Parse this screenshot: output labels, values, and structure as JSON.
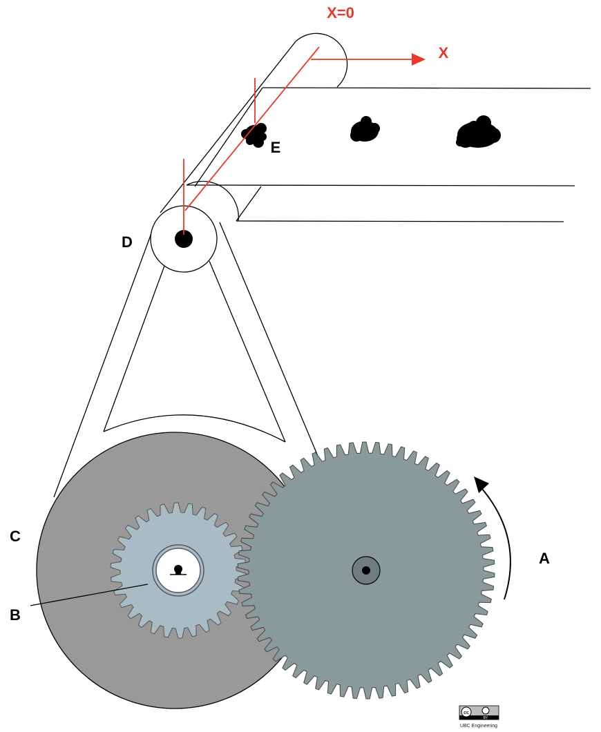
{
  "labels": {
    "x0": "X=0",
    "x": "X",
    "a": "A",
    "b": "B",
    "c": "C",
    "d": "D",
    "e": "E"
  },
  "license": {
    "cc": "cc",
    "by": "BY",
    "credit": "UBC Engineering"
  },
  "colors": {
    "axis_red": "#e8392b",
    "gear_large": "#8a9a9b",
    "gear_small": "#a9bcc6",
    "drum": "#999999",
    "belt_outline": "#000000"
  },
  "gears": {
    "large_gear_teeth": 62,
    "small_gear_teeth": 30
  }
}
